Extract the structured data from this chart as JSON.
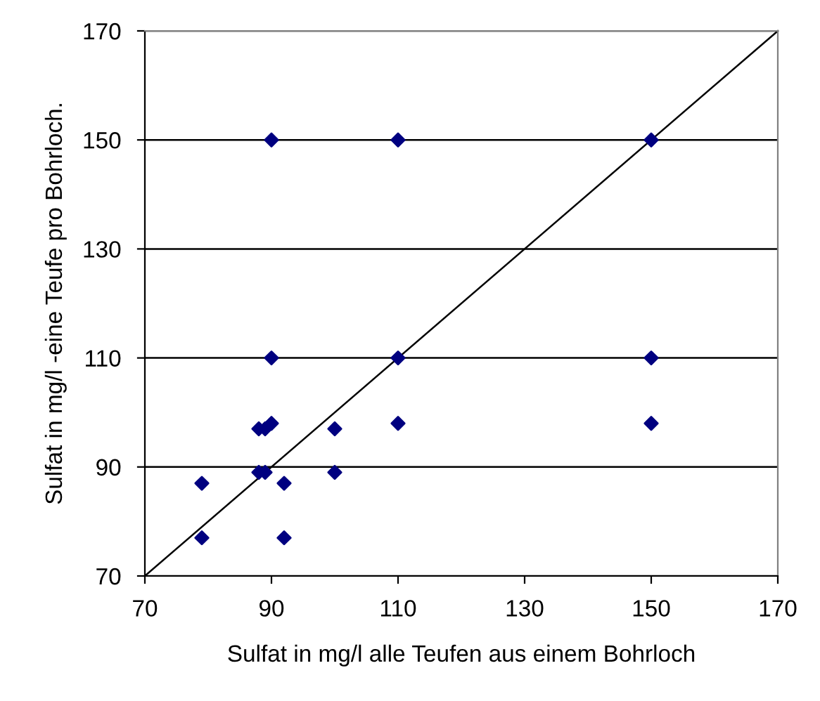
{
  "chart_data": {
    "type": "scatter",
    "xlabel": "Sulfat in mg/l alle Teufen aus einem Bohrloch",
    "ylabel": "Sulfat in mg/l -eine Teufe pro Bohrloch.",
    "x": [
      90,
      110,
      150,
      90,
      110,
      150,
      150,
      110,
      79,
      79,
      88,
      89,
      92,
      92,
      88,
      89,
      90,
      100,
      100
    ],
    "series": [
      {
        "color": "#000080",
        "values": [
          150,
          150,
          150,
          110,
          110,
          110,
          98,
          98,
          87,
          77,
          89,
          89,
          87,
          77,
          97,
          97,
          98,
          97,
          89
        ],
        "marker": "diamond"
      },
      {
        "type": "line",
        "color": "#000000",
        "x": [
          70,
          170
        ],
        "values": [
          70,
          170
        ],
        "marker": "none",
        "line_style": "solid"
      }
    ],
    "xlim": [
      70,
      170
    ],
    "ylim": [
      70,
      170
    ],
    "xticks": [
      70,
      90,
      110,
      130,
      150,
      170
    ],
    "yticks": [
      70,
      90,
      110,
      130,
      150,
      170
    ],
    "grid": "y",
    "legend": false
  }
}
